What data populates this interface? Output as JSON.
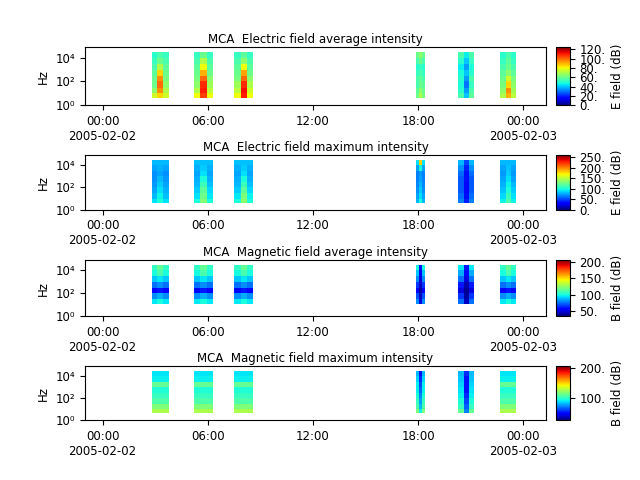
{
  "chart_data": [
    {
      "type": "heatmap",
      "title": "MCA  Electric field average intensity",
      "y_label": "Hz",
      "colorbar_label": "E field (dB)",
      "color": "jet",
      "log": "y",
      "xlim": [
        -1.0,
        25.3
      ],
      "xticks": [
        {
          "value": 0,
          "label": "00:00\n2005-02-02"
        },
        {
          "value": 6,
          "label": "06:00"
        },
        {
          "value": 12,
          "label": "12:00"
        },
        {
          "value": 18,
          "label": "18:00"
        },
        {
          "value": 24,
          "label": "00:00\n2005-02-03"
        }
      ],
      "ylim": [
        1,
        80000
      ],
      "yticks": [
        {
          "value": 1,
          "label": "10⁰"
        },
        {
          "value": 100,
          "label": "10²"
        },
        {
          "value": 10000,
          "label": "10⁴"
        }
      ],
      "x_edges": [
        [
          2.8,
          3.13,
          3.47,
          3.8
        ],
        [
          5.2,
          5.57,
          5.93,
          6.3
        ],
        [
          7.5,
          7.87,
          8.23,
          8.6
        ],
        [
          17.9,
          18.07,
          18.23,
          18.4
        ],
        [
          20.3,
          20.6,
          20.9,
          21.2
        ],
        [
          22.7,
          23.0,
          23.3,
          23.6
        ]
      ],
      "y_edges": [
        4,
        10,
        30,
        100,
        300,
        1000,
        3000,
        10000,
        30000
      ],
      "colorbar_range": [
        0,
        125
      ],
      "colorbar_ticks": [
        {
          "value": 0,
          "label": "0."
        },
        {
          "value": 20,
          "label": "20."
        },
        {
          "value": 40,
          "label": "40."
        },
        {
          "value": 60,
          "label": "60."
        },
        {
          "value": 80,
          "label": "80."
        },
        {
          "value": 100,
          "label": "100."
        },
        {
          "value": 120,
          "label": "120."
        }
      ],
      "cells": [
        [
          75,
          85,
          75,
          80,
          105,
          80,
          80,
          110,
          80,
          60,
          70,
          62,
          55,
          40,
          58,
          70,
          90,
          72
        ],
        [
          65,
          95,
          70,
          70,
          110,
          72,
          72,
          112,
          75,
          58,
          65,
          60,
          50,
          35,
          55,
          65,
          95,
          68
        ],
        [
          60,
          100,
          65,
          65,
          108,
          68,
          68,
          108,
          70,
          55,
          60,
          58,
          48,
          30,
          52,
          62,
          85,
          65
        ],
        [
          60,
          95,
          62,
          62,
          100,
          65,
          62,
          100,
          65,
          55,
          58,
          55,
          50,
          35,
          55,
          60,
          75,
          62
        ],
        [
          58,
          85,
          60,
          60,
          90,
          60,
          60,
          92,
          60,
          52,
          55,
          52,
          48,
          40,
          50,
          58,
          65,
          58
        ],
        [
          55,
          70,
          58,
          58,
          80,
          58,
          58,
          80,
          58,
          50,
          52,
          50,
          45,
          35,
          48,
          55,
          60,
          55
        ],
        [
          52,
          60,
          55,
          55,
          70,
          55,
          55,
          65,
          55,
          55,
          60,
          55,
          50,
          40,
          52,
          52,
          58,
          52
        ],
        [
          50,
          55,
          52,
          52,
          60,
          52,
          52,
          58,
          52,
          60,
          65,
          60,
          55,
          45,
          55,
          50,
          55,
          50
        ]
      ]
    },
    {
      "type": "heatmap",
      "title": "MCA  Electric field maximum intensity",
      "y_label": "Hz",
      "colorbar_label": "E field (dB)",
      "color": "jet",
      "log": "y",
      "xlim": [
        -1.0,
        25.3
      ],
      "xticks": [
        {
          "value": 0,
          "label": "00:00\n2005-02-02"
        },
        {
          "value": 6,
          "label": "06:00"
        },
        {
          "value": 12,
          "label": "12:00"
        },
        {
          "value": 18,
          "label": "18:00"
        },
        {
          "value": 24,
          "label": "00:00\n2005-02-03"
        }
      ],
      "ylim": [
        1,
        80000
      ],
      "yticks": [
        {
          "value": 1,
          "label": "10⁰"
        },
        {
          "value": 100,
          "label": "10²"
        },
        {
          "value": 10000,
          "label": "10⁴"
        }
      ],
      "x_edges": [
        [
          2.8,
          3.13,
          3.47,
          3.8
        ],
        [
          5.2,
          5.57,
          5.93,
          6.3
        ],
        [
          7.5,
          7.87,
          8.23,
          8.6
        ],
        [
          17.9,
          18.07,
          18.23,
          18.4
        ],
        [
          20.3,
          20.6,
          20.9,
          21.2
        ],
        [
          22.7,
          23.0,
          23.3,
          23.6
        ]
      ],
      "y_edges": [
        4,
        10,
        30,
        100,
        300,
        1000,
        3000,
        10000,
        30000
      ],
      "colorbar_range": [
        0,
        260
      ],
      "colorbar_ticks": [
        {
          "value": 0,
          "label": "0."
        },
        {
          "value": 50,
          "label": "50."
        },
        {
          "value": 100,
          "label": "100."
        },
        {
          "value": 150,
          "label": "150."
        },
        {
          "value": 200,
          "label": "200."
        },
        {
          "value": 250,
          "label": "250."
        }
      ],
      "cells": [
        [
          90,
          100,
          90,
          100,
          130,
          100,
          100,
          135,
          100,
          80,
          100,
          80,
          65,
          40,
          65,
          95,
          115,
          95
        ],
        [
          80,
          95,
          82,
          90,
          125,
          92,
          92,
          130,
          95,
          75,
          90,
          75,
          60,
          35,
          60,
          88,
          110,
          90
        ],
        [
          75,
          90,
          78,
          85,
          120,
          88,
          85,
          120,
          88,
          70,
          85,
          70,
          55,
          30,
          55,
          82,
          100,
          85
        ],
        [
          72,
          85,
          75,
          80,
          110,
          82,
          80,
          110,
          82,
          68,
          80,
          68,
          55,
          30,
          55,
          78,
          95,
          80
        ],
        [
          70,
          80,
          72,
          78,
          100,
          78,
          78,
          100,
          78,
          65,
          75,
          65,
          55,
          35,
          55,
          75,
          90,
          75
        ],
        [
          70,
          75,
          70,
          75,
          90,
          75,
          75,
          90,
          75,
          65,
          72,
          65,
          60,
          35,
          60,
          72,
          85,
          72
        ],
        [
          75,
          78,
          75,
          78,
          85,
          78,
          78,
          85,
          78,
          75,
          100,
          75,
          70,
          40,
          70,
          75,
          82,
          75
        ],
        [
          80,
          80,
          80,
          82,
          82,
          82,
          82,
          82,
          82,
          90,
          180,
          90,
          80,
          50,
          80,
          80,
          80,
          80
        ]
      ]
    },
    {
      "type": "heatmap",
      "title": "MCA  Magnetic field average intensity",
      "y_label": "Hz",
      "colorbar_label": "B field (dB)",
      "color": "jet",
      "log": "y",
      "xlim": [
        -1.0,
        25.3
      ],
      "xticks": [
        {
          "value": 0,
          "label": "00:00\n2005-02-02"
        },
        {
          "value": 6,
          "label": "06:00"
        },
        {
          "value": 12,
          "label": "12:00"
        },
        {
          "value": 18,
          "label": "18:00"
        },
        {
          "value": 24,
          "label": "00:00\n2005-02-03"
        }
      ],
      "ylim": [
        1,
        80000
      ],
      "yticks": [
        {
          "value": 1,
          "label": "10⁰"
        },
        {
          "value": 100,
          "label": "10²"
        },
        {
          "value": 10000,
          "label": "10⁴"
        }
      ],
      "x_edges": [
        [
          2.8,
          3.13,
          3.47,
          3.8
        ],
        [
          5.2,
          5.57,
          5.93,
          6.3
        ],
        [
          7.5,
          7.87,
          8.23,
          8.6
        ],
        [
          17.9,
          18.07,
          18.23,
          18.4
        ],
        [
          20.3,
          20.6,
          20.9,
          21.2
        ],
        [
          22.7,
          23.0,
          23.3,
          23.6
        ]
      ],
      "y_edges": [
        4,
        10,
        30,
        100,
        300,
        1000,
        3000,
        10000,
        30000
      ],
      "colorbar_range": [
        35,
        205
      ],
      "colorbar_ticks": [
        {
          "value": 50,
          "label": "50."
        },
        {
          "value": 100,
          "label": "100."
        },
        {
          "value": 150,
          "label": "150."
        },
        {
          "value": 200,
          "label": "200."
        }
      ],
      "cells": [
        [
          null,
          null,
          null,
          null,
          null,
          null,
          null,
          null,
          null,
          null,
          null,
          null,
          null,
          null,
          null,
          null,
          null,
          null
        ],
        [
          95,
          100,
          95,
          95,
          100,
          95,
          95,
          100,
          95,
          80,
          50,
          80,
          75,
          45,
          75,
          95,
          100,
          95
        ],
        [
          80,
          85,
          80,
          80,
          85,
          80,
          80,
          85,
          80,
          70,
          45,
          70,
          65,
          40,
          65,
          80,
          85,
          80
        ],
        [
          55,
          60,
          55,
          55,
          60,
          55,
          55,
          60,
          55,
          55,
          40,
          55,
          50,
          38,
          50,
          55,
          60,
          55
        ],
        [
          75,
          80,
          75,
          75,
          80,
          75,
          75,
          80,
          75,
          65,
          45,
          65,
          60,
          42,
          60,
          75,
          80,
          75
        ],
        [
          90,
          95,
          90,
          90,
          95,
          90,
          90,
          95,
          90,
          80,
          50,
          80,
          75,
          50,
          75,
          90,
          95,
          90
        ],
        [
          100,
          110,
          100,
          100,
          110,
          100,
          100,
          110,
          100,
          90,
          55,
          90,
          85,
          55,
          85,
          100,
          110,
          100
        ],
        [
          105,
          115,
          105,
          105,
          115,
          105,
          105,
          115,
          105,
          100,
          60,
          100,
          95,
          60,
          95,
          105,
          115,
          105
        ]
      ]
    },
    {
      "type": "heatmap",
      "title": "MCA  Magnetic field maximum intensity",
      "y_label": "Hz",
      "colorbar_label": "B field (dB)",
      "color": "jet",
      "log": "y",
      "xlim": [
        -1.0,
        25.3
      ],
      "xticks": [
        {
          "value": 0,
          "label": "00:00\n2005-02-02"
        },
        {
          "value": 6,
          "label": "06:00"
        },
        {
          "value": 12,
          "label": "12:00"
        },
        {
          "value": 18,
          "label": "18:00"
        },
        {
          "value": 24,
          "label": "00:00\n2005-02-03"
        }
      ],
      "ylim": [
        1,
        80000
      ],
      "yticks": [
        {
          "value": 1,
          "label": "10⁰"
        },
        {
          "value": 100,
          "label": "10²"
        },
        {
          "value": 10000,
          "label": "10⁴"
        }
      ],
      "x_edges": [
        [
          2.8,
          3.13,
          3.47,
          3.8
        ],
        [
          5.2,
          5.57,
          5.93,
          6.3
        ],
        [
          7.5,
          7.87,
          8.23,
          8.6
        ],
        [
          17.9,
          18.07,
          18.23,
          18.4
        ],
        [
          20.3,
          20.6,
          20.9,
          21.2
        ],
        [
          22.7,
          23.0,
          23.3,
          23.6
        ]
      ],
      "y_edges": [
        4,
        10,
        30,
        100,
        300,
        1000,
        3000,
        10000,
        30000
      ],
      "colorbar_range": [
        25,
        205
      ],
      "colorbar_ticks": [
        {
          "value": 100,
          "label": "100."
        },
        {
          "value": 200,
          "label": "200."
        }
      ],
      "cells": [
        [
          125,
          125,
          125,
          125,
          125,
          125,
          125,
          125,
          125,
          115,
          90,
          115,
          110,
          70,
          110,
          125,
          125,
          125
        ],
        [
          115,
          115,
          115,
          115,
          115,
          115,
          115,
          115,
          115,
          105,
          80,
          105,
          100,
          65,
          100,
          115,
          115,
          115
        ],
        [
          105,
          105,
          105,
          105,
          105,
          105,
          105,
          105,
          105,
          100,
          75,
          100,
          95,
          60,
          95,
          105,
          105,
          105
        ],
        [
          100,
          100,
          100,
          100,
          100,
          100,
          100,
          100,
          100,
          95,
          70,
          95,
          90,
          55,
          90,
          100,
          100,
          100
        ],
        [
          95,
          95,
          95,
          95,
          95,
          95,
          95,
          95,
          95,
          90,
          65,
          90,
          88,
          50,
          88,
          95,
          95,
          95
        ],
        [
          110,
          110,
          110,
          110,
          110,
          110,
          110,
          110,
          110,
          90,
          60,
          90,
          85,
          50,
          85,
          110,
          110,
          110
        ],
        [
          90,
          90,
          90,
          90,
          90,
          90,
          90,
          90,
          90,
          85,
          55,
          85,
          82,
          50,
          82,
          90,
          90,
          90
        ],
        [
          88,
          88,
          88,
          88,
          88,
          88,
          88,
          88,
          88,
          80,
          50,
          80,
          80,
          55,
          80,
          88,
          88,
          88
        ]
      ]
    }
  ]
}
